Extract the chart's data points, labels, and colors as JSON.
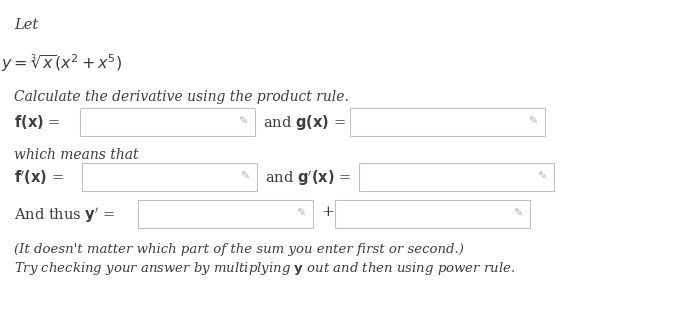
{
  "background_color": "#ffffff",
  "text_color": "#3d3d3d",
  "box_edge_color": "#c0c0c0",
  "box_fill_color": "#ffffff",
  "title_text": "Let",
  "formula": "$y = \\sqrt[3]{x}(x^2 + x^5)$",
  "line1": "Calculate the derivative using the product rule.",
  "fx_label": "$\\mathbf{f(x)}$ =",
  "and1": "and $\\mathbf{g(x)}$ =",
  "which_means": "which means that",
  "fpx_label": "$\\mathbf{f'(x)}$ =",
  "and2": "and $\\mathbf{g'(x)}$ =",
  "thus_label": "And thus $\\mathbf{y'}$ =",
  "plus": "+",
  "note1": "(It doesn't matter which part of the sum you enter first or second.)",
  "note2": "Try checking your answer by multiplying $\\mathbf{y}$ out and then using power rule.",
  "pencil_color": "#b0b0b0",
  "figw": 6.91,
  "figh": 3.3,
  "dpi": 100
}
